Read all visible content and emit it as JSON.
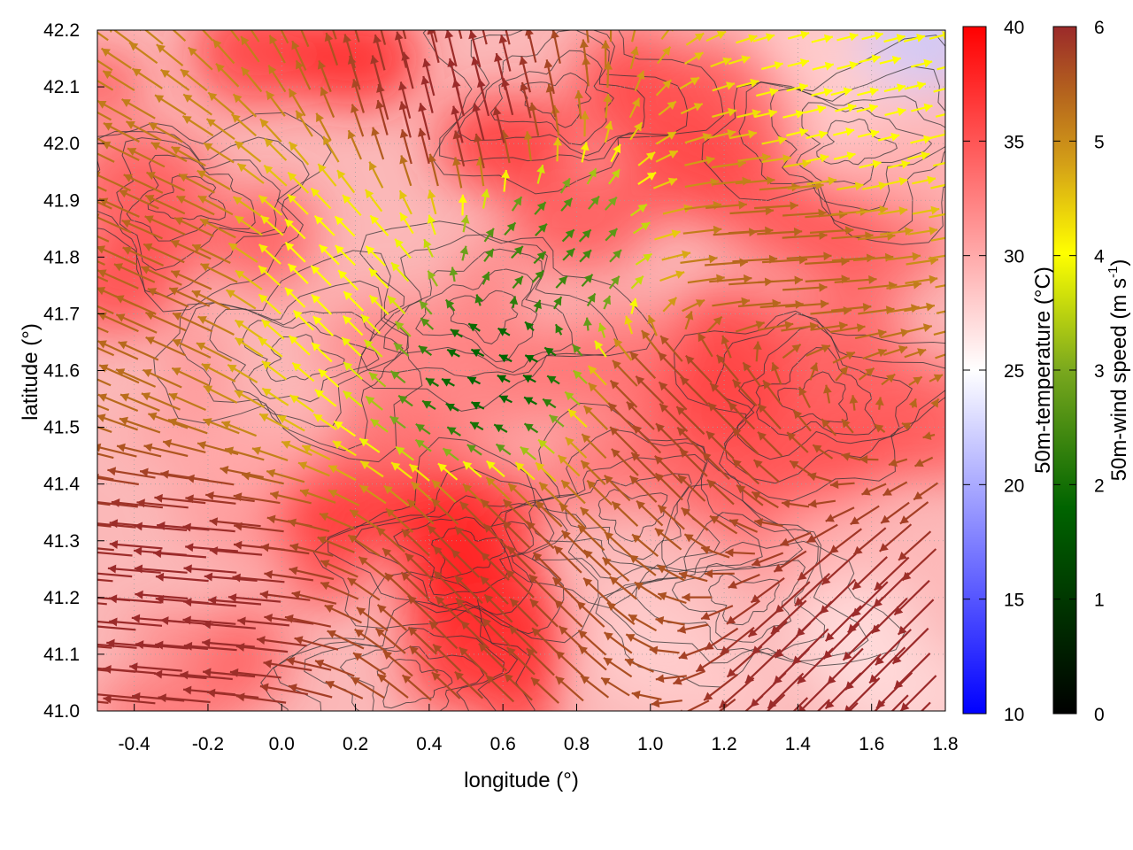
{
  "chart_data": {
    "type": "heatmap",
    "title": "",
    "xlabel": "longitude (°)",
    "ylabel": "latitude (°)",
    "xlim": [
      -0.5,
      1.8
    ],
    "ylim": [
      41.0,
      42.2
    ],
    "xticks": [
      -0.4,
      -0.2,
      0.0,
      0.2,
      0.4,
      0.6,
      0.8,
      1.0,
      1.2,
      1.4,
      1.6,
      1.8
    ],
    "xtick_labels": [
      "-0.4",
      "-0.2",
      "0.0",
      "0.2",
      "0.4",
      "0.6",
      "0.8",
      "1.0",
      "1.2",
      "1.4",
      "1.6",
      "1.8"
    ],
    "yticks": [
      41.0,
      41.1,
      41.2,
      41.3,
      41.4,
      41.5,
      41.6,
      41.7,
      41.8,
      41.9,
      42.0,
      42.1,
      42.2
    ],
    "ytick_labels": [
      "41.0",
      "41.1",
      "41.2",
      "41.3",
      "41.4",
      "41.5",
      "41.6",
      "41.7",
      "41.8",
      "41.9",
      "42.0",
      "42.1",
      "42.2"
    ],
    "grid": true,
    "layers": [
      "50m-temperature shading",
      "terrain contour lines",
      "50m-wind vectors colored by speed"
    ],
    "temperature_colorbar": {
      "label": "50m-temperature (°C)",
      "range": [
        10,
        40
      ],
      "ticks": [
        10,
        15,
        20,
        25,
        30,
        35,
        40
      ],
      "tick_labels": [
        "10",
        "15",
        "20",
        "25",
        "30",
        "35",
        "40"
      ],
      "colors": [
        "#0000ff",
        "#ffffff",
        "#ff0000"
      ]
    },
    "wind_colorbar": {
      "label": "50m-wind speed (m s",
      "label_sup": "-1",
      "label_end": ")",
      "range": [
        0,
        6
      ],
      "ticks": [
        0,
        1,
        2,
        3,
        4,
        5,
        6
      ],
      "tick_labels": [
        "0",
        "1",
        "2",
        "3",
        "4",
        "5",
        "6"
      ],
      "colors": [
        "#000000",
        "#006400",
        "#7aa81e",
        "#ffff00",
        "#d4a017",
        "#b5651d",
        "#9b2a2a"
      ]
    },
    "temperature_regions": [
      {
        "lon": -0.45,
        "lat": 41.75,
        "temp": 36
      },
      {
        "lon": -0.1,
        "lat": 41.45,
        "temp": 30
      },
      {
        "lon": 0.15,
        "lat": 41.35,
        "temp": 37
      },
      {
        "lon": 0.5,
        "lat": 41.25,
        "temp": 38
      },
      {
        "lon": 0.6,
        "lat": 41.1,
        "temp": 37
      },
      {
        "lon": 0.85,
        "lat": 41.6,
        "temp": 33
      },
      {
        "lon": 1.2,
        "lat": 41.55,
        "temp": 36
      },
      {
        "lon": 1.5,
        "lat": 41.45,
        "temp": 35
      },
      {
        "lon": 1.55,
        "lat": 41.15,
        "temp": 27
      },
      {
        "lon": 1.0,
        "lat": 41.1,
        "temp": 28
      },
      {
        "lon": 0.6,
        "lat": 42.0,
        "temp": 37
      },
      {
        "lon": 1.1,
        "lat": 41.95,
        "temp": 36
      },
      {
        "lon": 0.2,
        "lat": 42.15,
        "temp": 38
      },
      {
        "lon": 1.5,
        "lat": 42.15,
        "temp": 28
      },
      {
        "lon": 1.75,
        "lat": 42.18,
        "temp": 22
      },
      {
        "lon": 0.3,
        "lat": 41.65,
        "temp": 32
      },
      {
        "lon": 1.45,
        "lat": 41.85,
        "temp": 35
      }
    ],
    "wind_field_regions": [
      {
        "lon": -0.3,
        "lat": 41.75,
        "u": -4.5,
        "v": 2.0,
        "speed": 5.0
      },
      {
        "lon": 0.15,
        "lat": 41.75,
        "u": -2.0,
        "v": 2.0,
        "speed": 3.0
      },
      {
        "lon": 0.7,
        "lat": 41.8,
        "u": 1.0,
        "v": 1.0,
        "speed": 1.5
      },
      {
        "lon": 0.6,
        "lat": 41.6,
        "u": -1.0,
        "v": 0.5,
        "speed": 1.0
      },
      {
        "lon": 1.3,
        "lat": 41.8,
        "u": 5.0,
        "v": 0.3,
        "speed": 5.0
      },
      {
        "lon": -0.2,
        "lat": 41.2,
        "u": -6.0,
        "v": 0.5,
        "speed": 6.0
      },
      {
        "lon": 0.6,
        "lat": 41.2,
        "u": -3.0,
        "v": 3.0,
        "speed": 5.5
      },
      {
        "lon": 1.6,
        "lat": 41.1,
        "u": -4.0,
        "v": -4.0,
        "speed": 6.0
      },
      {
        "lon": 1.1,
        "lat": 41.5,
        "u": -3.0,
        "v": 3.0,
        "speed": 5.5
      },
      {
        "lon": 0.5,
        "lat": 42.05,
        "u": -1.0,
        "v": 4.0,
        "speed": 6.0
      },
      {
        "lon": 1.5,
        "lat": 42.05,
        "u": 2.0,
        "v": 0.5,
        "speed": 3.0
      }
    ]
  }
}
